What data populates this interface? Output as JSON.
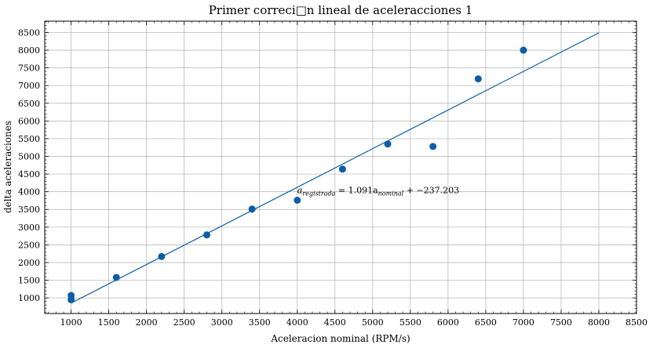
{
  "chart_data": {
    "type": "scatter",
    "title": "Primer correci□n lineal de aceleracciones 1",
    "xlabel": "Aceleracion nominal (RPM/s)",
    "ylabel": "delta aceleraciones",
    "xlim": [
      650,
      8500
    ],
    "ylim": [
      560,
      8820
    ],
    "xticks": [
      1000,
      1500,
      2000,
      2500,
      3000,
      3500,
      4000,
      4500,
      5000,
      5500,
      6000,
      6500,
      7000,
      7500,
      8000,
      8500
    ],
    "yticks": [
      1000,
      1500,
      2000,
      2500,
      3000,
      3500,
      4000,
      4500,
      5000,
      5500,
      6000,
      6500,
      7000,
      7500,
      8000,
      8500
    ],
    "grid": true,
    "points": [
      {
        "x": 1000,
        "y": 950
      },
      {
        "x": 1000,
        "y": 1070
      },
      {
        "x": 1600,
        "y": 1580
      },
      {
        "x": 2200,
        "y": 2170
      },
      {
        "x": 2800,
        "y": 2780
      },
      {
        "x": 3400,
        "y": 3510
      },
      {
        "x": 4000,
        "y": 3760
      },
      {
        "x": 4600,
        "y": 4640
      },
      {
        "x": 5200,
        "y": 5350
      },
      {
        "x": 5800,
        "y": 5280
      },
      {
        "x": 6400,
        "y": 7190
      },
      {
        "x": 7000,
        "y": 8000
      }
    ],
    "fit_line": {
      "slope": 1.091,
      "intercept": -237.203,
      "x_start": 1000,
      "x_end": 8000
    },
    "annotation": {
      "x": 4000,
      "y": 4000,
      "main": "a",
      "sub1": "registrada",
      "mid": " = 1.091a",
      "sub2": "nominal",
      "tail": " + −237.203"
    },
    "colors": {
      "points": "#0C5DA5",
      "line": "#0C5DA5"
    }
  }
}
